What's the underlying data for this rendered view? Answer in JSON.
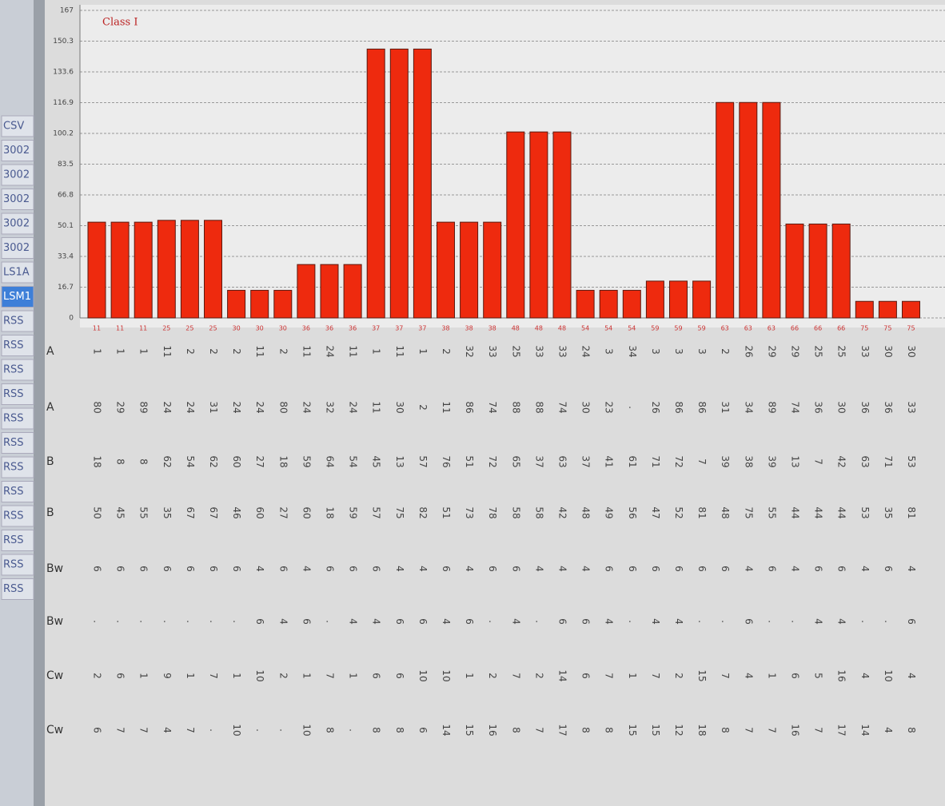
{
  "chart_data": {
    "type": "bar",
    "title": "Class I",
    "color": "#ee2a0e",
    "categories": [
      "11",
      "11",
      "11",
      "25",
      "25",
      "25",
      "30",
      "30",
      "30",
      "36",
      "36",
      "36",
      "37",
      "37",
      "37",
      "38",
      "38",
      "38",
      "48",
      "48",
      "48",
      "54",
      "54",
      "54",
      "59",
      "59",
      "59",
      "63",
      "63",
      "63",
      "66",
      "66",
      "66",
      "75",
      "75",
      "75"
    ],
    "values": [
      52,
      52,
      52,
      53,
      53,
      53,
      15,
      15,
      15,
      29,
      29,
      29,
      146,
      146,
      146,
      52,
      52,
      52,
      101,
      101,
      101,
      15,
      15,
      15,
      20,
      20,
      20,
      117,
      117,
      117,
      51,
      51,
      51,
      9,
      9,
      9
    ],
    "ylim": [
      0,
      167
    ],
    "yticks": [
      0,
      16.7,
      33.4,
      50.1,
      66.8,
      83.5,
      100.2,
      116.9,
      133.6,
      150.3,
      167
    ],
    "grid": true
  },
  "sidebar": {
    "items": [
      "CSV",
      "3002",
      "3002",
      "3002",
      "3002",
      "3002",
      "LS1A",
      "LSM1",
      "RSS",
      "RSS",
      "RSS",
      "RSS",
      "RSS",
      "RSS",
      "RSS",
      "RSS",
      "RSS",
      "RSS",
      "RSS",
      "RSS"
    ]
  },
  "table": {
    "row_labels": [
      "A",
      "A",
      "B",
      "B",
      "Bw",
      "Bw",
      "Cw",
      "Cw"
    ],
    "rows": [
      [
        1,
        1,
        1,
        11,
        2,
        2,
        2,
        11,
        2,
        11,
        24,
        11,
        1,
        11,
        1,
        2,
        32,
        33,
        25,
        33,
        33,
        24,
        3,
        34,
        3,
        3,
        3,
        2,
        26,
        29,
        29,
        25,
        25,
        33,
        30,
        30
      ],
      [
        80,
        29,
        89,
        24,
        24,
        31,
        24,
        24,
        80,
        24,
        32,
        24,
        11,
        30,
        2,
        11,
        86,
        74,
        88,
        88,
        74,
        30,
        23,
        ".",
        26,
        86,
        86,
        31,
        34,
        89,
        74,
        36,
        30,
        36,
        36,
        33
      ],
      [
        18,
        8,
        8,
        62,
        54,
        62,
        60,
        27,
        18,
        59,
        64,
        54,
        45,
        13,
        57,
        76,
        51,
        72,
        65,
        37,
        63,
        37,
        41,
        61,
        71,
        72,
        7,
        39,
        38,
        39,
        13,
        7,
        42,
        63,
        71,
        53
      ],
      [
        50,
        45,
        55,
        35,
        67,
        67,
        46,
        60,
        27,
        60,
        18,
        59,
        57,
        75,
        82,
        51,
        73,
        78,
        58,
        58,
        42,
        48,
        49,
        56,
        47,
        52,
        81,
        48,
        75,
        55,
        44,
        44,
        44,
        53,
        35,
        81
      ],
      [
        6,
        6,
        6,
        6,
        6,
        6,
        6,
        4,
        6,
        4,
        6,
        6,
        6,
        4,
        4,
        6,
        4,
        6,
        6,
        4,
        4,
        4,
        6,
        6,
        6,
        6,
        6,
        6,
        4,
        6,
        4,
        6,
        6,
        4,
        6,
        4
      ],
      [
        ".",
        ".",
        ".",
        ".",
        ".",
        ".",
        ".",
        6,
        4,
        6,
        ".",
        4,
        4,
        6,
        6,
        4,
        6,
        ".",
        4,
        ".",
        6,
        6,
        4,
        ".",
        4,
        4,
        ".",
        ".",
        6,
        ".",
        ".",
        4,
        4,
        ".",
        ".",
        6
      ],
      [
        2,
        6,
        1,
        9,
        1,
        7,
        1,
        10,
        2,
        1,
        7,
        1,
        6,
        6,
        10,
        10,
        1,
        2,
        7,
        2,
        14,
        6,
        7,
        1,
        7,
        2,
        15,
        7,
        4,
        1,
        6,
        5,
        16,
        4,
        10,
        4
      ],
      [
        6,
        7,
        7,
        4,
        7,
        ".",
        10,
        ".",
        ".",
        10,
        8,
        ".",
        8,
        8,
        6,
        14,
        15,
        16,
        8,
        7,
        17,
        8,
        8,
        15,
        15,
        12,
        18,
        8,
        7,
        7,
        16,
        7,
        17,
        14,
        4,
        8
      ]
    ]
  }
}
